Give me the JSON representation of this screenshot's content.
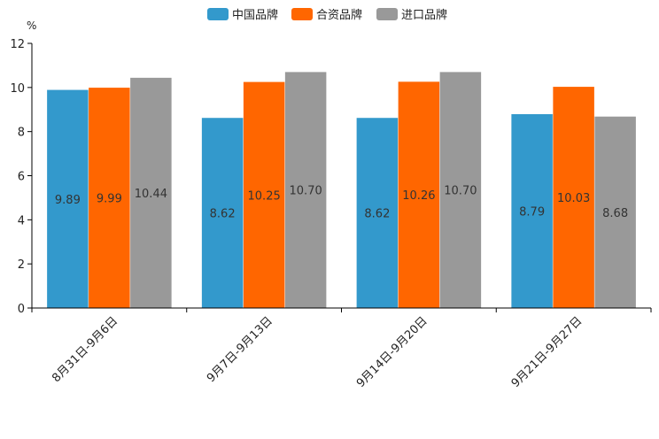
{
  "chart_data": {
    "type": "bar",
    "ylabel": "%",
    "ylim": [
      0,
      12
    ],
    "yticks": [
      0,
      2,
      4,
      6,
      8,
      10,
      12
    ],
    "grid": false,
    "legend_position": "top-center",
    "categories": [
      "8月31日-9月6日",
      "9月7日-9月13日",
      "9月14日-9月20日",
      "9月21日-9月27日"
    ],
    "series": [
      {
        "name": "中国品牌",
        "color": "#3399cc",
        "values": [
          9.89,
          8.62,
          8.62,
          8.79
        ],
        "labels": [
          "9.89",
          "8.62",
          "8.62",
          "8.79"
        ]
      },
      {
        "name": "合资品牌",
        "color": "#ff6600",
        "values": [
          9.99,
          10.25,
          10.26,
          10.03
        ],
        "labels": [
          "9.99",
          "10.25",
          "10.26",
          "10.03"
        ]
      },
      {
        "name": "进口品牌",
        "color": "#999999",
        "values": [
          10.44,
          10.7,
          10.7,
          8.68
        ],
        "labels": [
          "10.44",
          "10.70",
          "10.70",
          "8.68"
        ]
      }
    ]
  }
}
